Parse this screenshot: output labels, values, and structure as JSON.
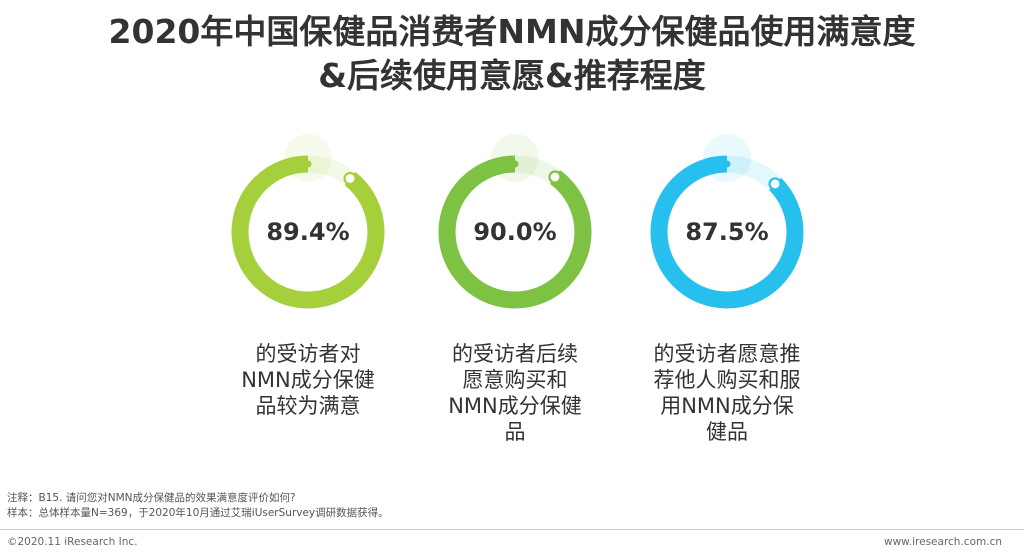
{
  "title": {
    "line1": "2020年中国保健品消费者NMN成分保健品使用满意度",
    "line2": "&后续使用意愿&推荐程度"
  },
  "chart_data": {
    "type": "donut",
    "unit": "%",
    "items": [
      {
        "value": 89.4,
        "label": "89.4%",
        "description": [
          "的受访者对",
          "NMN成分保健",
          "品较为满意"
        ],
        "color": "#a5cf3b"
      },
      {
        "value": 90.0,
        "label": "90.0%",
        "description": [
          "的受访者后续",
          "愿意购买和",
          "NMN成分保健",
          "品"
        ],
        "color": "#7dc242"
      },
      {
        "value": 87.5,
        "label": "87.5%",
        "description": [
          "的受访者愿意推",
          "荐他人购买和服",
          "用NMN成分保",
          "健品"
        ],
        "color": "#27c0ee"
      }
    ]
  },
  "notes": {
    "note": "注释：B15. 请问您对NMN成分保健品的效果满意度评价如何?",
    "sample": "样本：总体样本量N=369，于2020年10月通过艾瑞iUserSurvey调研数据获得。"
  },
  "footer": {
    "copyright": "©2020.11 iResearch Inc.",
    "website": "www.iresearch.com.cn"
  }
}
